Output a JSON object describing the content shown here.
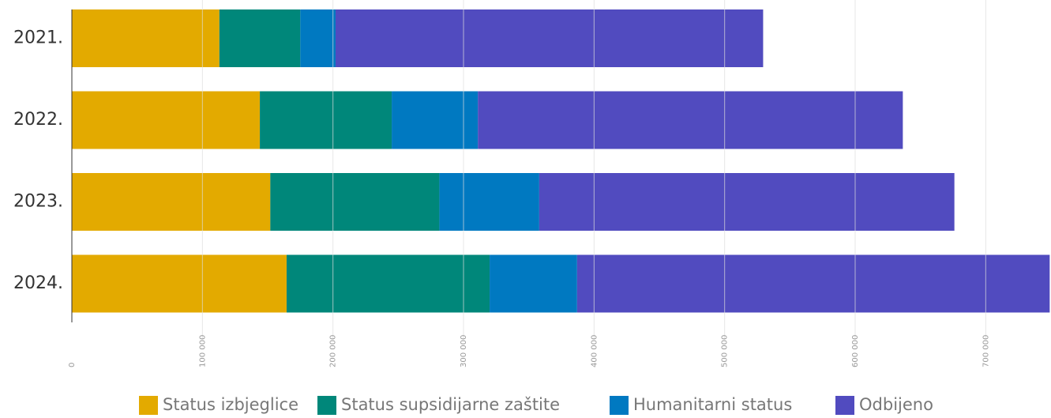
{
  "chart_data": {
    "type": "stacked_bar_horizontal",
    "categories": [
      "2021.",
      "2022.",
      "2023.",
      "2024."
    ],
    "series": [
      {
        "name": "Status izbjeglice",
        "color": "#e3aa00",
        "values": [
          113000,
          144000,
          152000,
          164500
        ]
      },
      {
        "name": "Status supsidijarne zaštite",
        "color": "#00877a",
        "values": [
          62000,
          101000,
          129500,
          155500
        ]
      },
      {
        "name": "Humanitarni status",
        "color": "#0079c1",
        "values": [
          27000,
          66000,
          76500,
          67000
        ]
      },
      {
        "name": "Odbijeno",
        "color": "#514bbf",
        "values": [
          327500,
          325500,
          318000,
          362000
        ]
      }
    ],
    "xlim": [
      0,
      750000
    ],
    "xticks": [
      0,
      {
        "value": 100000,
        "label": "100 000"
      },
      {
        "value": 200000,
        "label": "200 000"
      },
      {
        "value": 300000,
        "label": "300 000"
      },
      {
        "value": 400000,
        "label": "400 000"
      },
      {
        "value": 500000,
        "label": "500 000"
      },
      {
        "value": 600000,
        "label": "600 000"
      },
      {
        "value": 700000,
        "label": "700 000"
      }
    ],
    "grid": true,
    "legend": "bottom"
  }
}
